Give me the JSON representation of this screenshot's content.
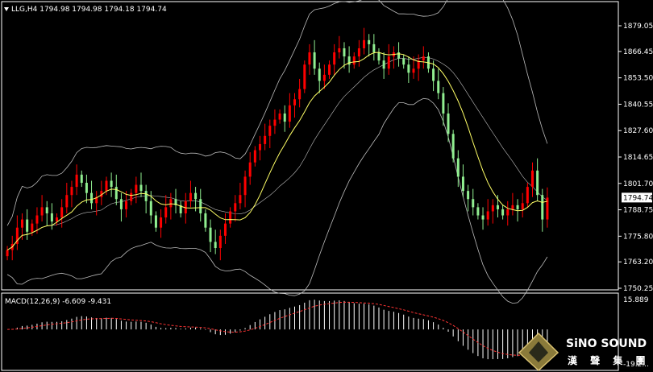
{
  "header": {
    "symbol_line": "LLG,H4  1794.98 1794.98 1794.18 1794.74",
    "arrow": "triangle-down-icon"
  },
  "macd": {
    "label": "MACD(12,26,9) -6.609 -9.431",
    "axis_labels": [
      "15.889",
      "-19.2..."
    ]
  },
  "price_axis": {
    "labels": [
      "1879.05",
      "1866.45",
      "1853.50",
      "1840.55",
      "1827.60",
      "1814.65",
      "1801.70",
      "1788.75",
      "1775.80",
      "1763.20",
      "1750.25"
    ],
    "current_price": "1794.74"
  },
  "watermark": {
    "brand": "SiNO SOUND",
    "chinese": "漢 聲 集 團",
    "logo": "diamond-logo-icon"
  },
  "colors": {
    "background": "#000000",
    "bull": "#ff0000",
    "bear": "#90ee90",
    "ma": "#ffff66",
    "bands": "#bbbbbb",
    "macd_hist": "#ffffff",
    "macd_signal": "#ff3333"
  },
  "chart_data": {
    "type": "candlestick",
    "symbol": "LLG",
    "timeframe": "H4",
    "ylim": [
      1750.25,
      1885
    ],
    "close_series": [
      1769,
      1772,
      1780,
      1784,
      1778,
      1782,
      1786,
      1790,
      1787,
      1783,
      1785,
      1790,
      1796,
      1800,
      1806,
      1802,
      1797,
      1792,
      1795,
      1798,
      1803,
      1800,
      1794,
      1789,
      1793,
      1797,
      1801,
      1798,
      1793,
      1786,
      1780,
      1785,
      1790,
      1794,
      1791,
      1787,
      1793,
      1797,
      1794,
      1787,
      1780,
      1773,
      1770,
      1776,
      1782,
      1788,
      1792,
      1796,
      1805,
      1812,
      1818,
      1821,
      1825,
      1830,
      1833,
      1836,
      1832,
      1840,
      1843,
      1848,
      1860,
      1866,
      1858,
      1852,
      1855,
      1860,
      1866,
      1868,
      1864,
      1860,
      1864,
      1868,
      1872,
      1870,
      1866,
      1862,
      1858,
      1864,
      1866,
      1863,
      1860,
      1856,
      1858,
      1862,
      1864,
      1858,
      1852,
      1846,
      1836,
      1826,
      1814,
      1805,
      1798,
      1794,
      1790,
      1786,
      1784,
      1788,
      1791,
      1789,
      1786,
      1789,
      1791,
      1789,
      1792,
      1800,
      1808,
      1796,
      1784,
      1794.74
    ],
    "macd_value": -6.609,
    "macd_signal": -9.431,
    "macd_range": [
      -19.2,
      15.889
    ]
  }
}
